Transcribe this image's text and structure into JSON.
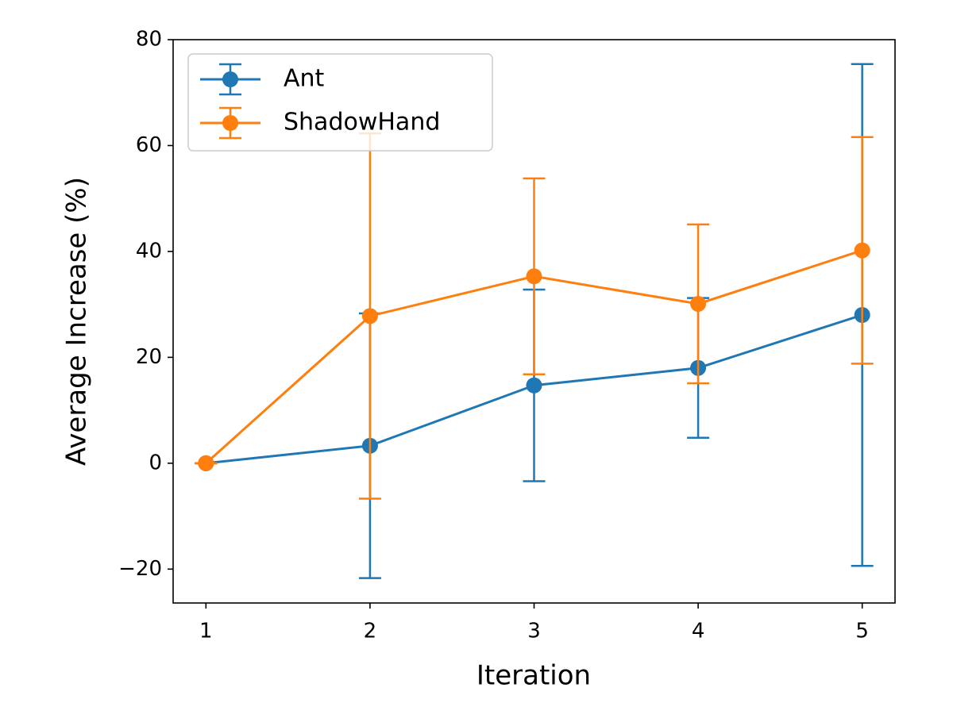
{
  "chart_data": {
    "type": "errorbar_line",
    "xlabel": "Iteration",
    "ylabel": "Average Increase (%)",
    "x": [
      1,
      2,
      3,
      4,
      5
    ],
    "series": [
      {
        "name": "Ant",
        "color": "#1f77b4",
        "values": [
          0,
          3.3,
          14.7,
          18.0,
          28.0
        ],
        "errors": [
          0,
          25.0,
          18.1,
          13.2,
          47.4
        ]
      },
      {
        "name": "ShadowHand",
        "color": "#ff7f0e",
        "values": [
          0,
          27.8,
          35.3,
          30.1,
          40.2
        ],
        "errors": [
          0,
          34.5,
          18.5,
          15.0,
          21.4
        ]
      }
    ],
    "xlim": [
      0.8,
      5.2
    ],
    "xticks": [
      1,
      2,
      3,
      4,
      5
    ],
    "ylim": [
      -26.4,
      80
    ],
    "yticks": [
      {
        "value": -20,
        "label": "−20"
      },
      0,
      20,
      40,
      60,
      80
    ],
    "legend": "upper left",
    "grid": false
  }
}
